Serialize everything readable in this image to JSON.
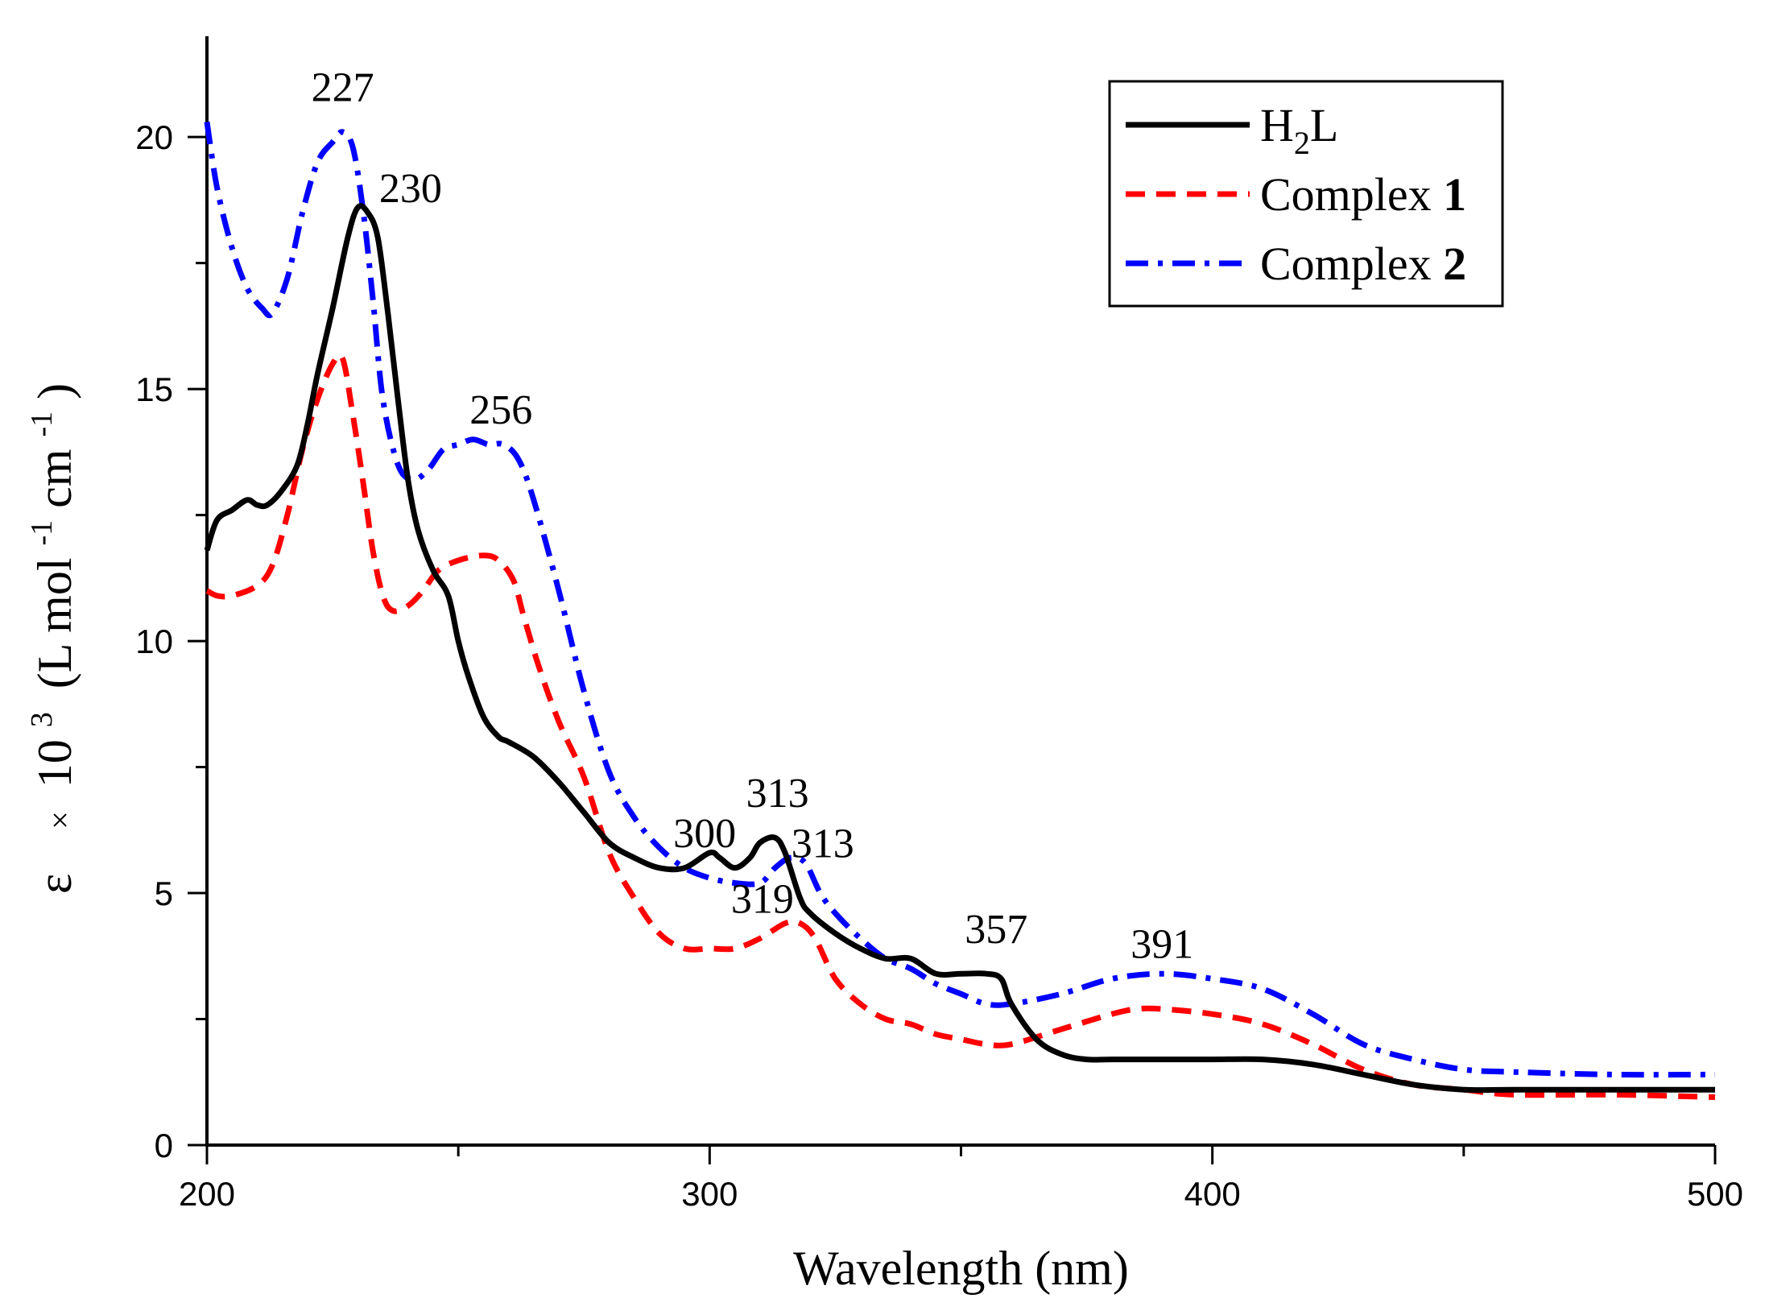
{
  "chart_data": {
    "type": "line",
    "title": "",
    "xlabel": "Wavelength (nm)",
    "ylabel": {
      "epsilon": "ε",
      "times": "×",
      "ten": "10",
      "ten_exp": "3",
      "paren_open": "(L mol",
      "mol_exp": "-1",
      "cm": " cm",
      "cm_exp": "-1",
      "paren_close": ")"
    },
    "xlim": [
      200,
      500
    ],
    "ylim": [
      0,
      22
    ],
    "x_ticks": [
      200,
      300,
      400,
      500
    ],
    "x_tick_labels": [
      "200",
      "300",
      "400",
      "500"
    ],
    "x_minor_ticks": [
      250,
      350,
      450
    ],
    "y_ticks": [
      0,
      5,
      10,
      15,
      20
    ],
    "y_tick_labels": [
      "0",
      "5",
      "10",
      "15",
      "20"
    ],
    "y_minor_ticks": [
      2.5,
      7.5,
      12.5,
      17.5
    ],
    "grid": false,
    "legend_position": "top-right",
    "series": [
      {
        "name": "H2L",
        "legend_main": "H",
        "legend_sub": "2",
        "legend_tail": "L",
        "legend_bold": "",
        "color": "#000000",
        "dash": "solid",
        "x": [
          200,
          202,
          205,
          208,
          210,
          212,
          215,
          218,
          220,
          222,
          225,
          228,
          230,
          232,
          234,
          236,
          238,
          240,
          242,
          245,
          248,
          250,
          252,
          255,
          258,
          260,
          265,
          270,
          275,
          280,
          285,
          290,
          295,
          300,
          302,
          305,
          308,
          310,
          313,
          315,
          318,
          320,
          325,
          330,
          335,
          340,
          345,
          350,
          355,
          358,
          360,
          365,
          370,
          375,
          380,
          390,
          400,
          410,
          420,
          430,
          440,
          450,
          460,
          480,
          500
        ],
        "y": [
          11.8,
          12.4,
          12.6,
          12.8,
          12.7,
          12.7,
          13.0,
          13.5,
          14.3,
          15.3,
          16.6,
          18.0,
          18.6,
          18.5,
          18.0,
          16.5,
          14.8,
          13.2,
          12.2,
          11.4,
          10.9,
          10.0,
          9.3,
          8.5,
          8.1,
          8.0,
          7.7,
          7.2,
          6.6,
          6.0,
          5.7,
          5.5,
          5.5,
          5.8,
          5.7,
          5.5,
          5.7,
          6.0,
          6.1,
          5.8,
          4.9,
          4.6,
          4.2,
          3.9,
          3.7,
          3.7,
          3.4,
          3.4,
          3.4,
          3.3,
          2.8,
          2.1,
          1.8,
          1.7,
          1.7,
          1.7,
          1.7,
          1.7,
          1.6,
          1.4,
          1.2,
          1.1,
          1.1,
          1.1,
          1.1
        ]
      },
      {
        "name": "Complex 1",
        "legend_main": "Complex ",
        "legend_sub": "",
        "legend_tail": "",
        "legend_bold": "1",
        "color": "#ff0000",
        "dash": "dashed",
        "x": [
          200,
          202,
          205,
          210,
          213,
          216,
          219,
          222,
          225,
          227,
          229,
          231,
          233,
          235,
          237,
          240,
          243,
          246,
          250,
          255,
          258,
          261,
          263,
          266,
          270,
          275,
          280,
          285,
          290,
          295,
          300,
          305,
          310,
          315,
          318,
          321,
          325,
          330,
          335,
          340,
          345,
          350,
          355,
          360,
          370,
          380,
          385,
          390,
          400,
          410,
          420,
          430,
          440,
          450,
          460,
          480,
          500
        ],
        "y": [
          11.0,
          10.9,
          10.9,
          11.1,
          11.5,
          12.5,
          13.8,
          14.8,
          15.5,
          15.6,
          14.5,
          13.2,
          11.8,
          10.9,
          10.6,
          10.7,
          11.0,
          11.4,
          11.6,
          11.7,
          11.6,
          11.2,
          10.5,
          9.5,
          8.4,
          7.3,
          5.8,
          4.9,
          4.2,
          3.9,
          3.9,
          3.9,
          4.1,
          4.4,
          4.4,
          4.1,
          3.3,
          2.8,
          2.5,
          2.4,
          2.2,
          2.1,
          2.0,
          2.0,
          2.3,
          2.6,
          2.7,
          2.7,
          2.6,
          2.4,
          2.0,
          1.5,
          1.2,
          1.1,
          1.0,
          1.0,
          0.95
        ]
      },
      {
        "name": "Complex 2",
        "legend_main": "Complex ",
        "legend_sub": "",
        "legend_tail": "",
        "legend_bold": "2",
        "color": "#0000ff",
        "dash": "dashdot",
        "x": [
          200,
          202,
          205,
          208,
          211,
          213,
          216,
          219,
          222,
          225,
          227,
          229,
          231,
          233,
          235,
          238,
          241,
          244,
          247,
          250,
          253,
          256,
          259,
          262,
          265,
          270,
          275,
          280,
          285,
          290,
          295,
          300,
          305,
          310,
          313,
          316,
          319,
          322,
          325,
          330,
          335,
          340,
          345,
          350,
          355,
          360,
          370,
          380,
          390,
          400,
          410,
          420,
          430,
          440,
          450,
          460,
          480,
          500
        ],
        "y": [
          20.3,
          19.0,
          17.8,
          17.0,
          16.6,
          16.5,
          17.2,
          18.5,
          19.5,
          19.9,
          20.1,
          19.8,
          18.6,
          16.8,
          14.8,
          13.5,
          13.2,
          13.4,
          13.8,
          13.9,
          14.0,
          13.9,
          13.9,
          13.6,
          12.8,
          11.0,
          9.0,
          7.4,
          6.5,
          5.9,
          5.5,
          5.3,
          5.2,
          5.2,
          5.5,
          5.7,
          5.6,
          5.0,
          4.6,
          4.1,
          3.7,
          3.5,
          3.2,
          3.0,
          2.8,
          2.8,
          3.0,
          3.3,
          3.4,
          3.3,
          3.1,
          2.6,
          2.0,
          1.7,
          1.5,
          1.45,
          1.4,
          1.4
        ]
      }
    ],
    "annotations": [
      {
        "text": "227",
        "x": 227,
        "y": 21.0
      },
      {
        "text": "230",
        "x": 240.5,
        "y": 19.0
      },
      {
        "text": "256",
        "x": 258.5,
        "y": 14.6
      },
      {
        "text": "313",
        "x": 313.5,
        "y": 7.0
      },
      {
        "text": "300",
        "x": 299,
        "y": 6.2
      },
      {
        "text": "313",
        "x": 322.5,
        "y": 6.0
      },
      {
        "text": "319",
        "x": 310.5,
        "y": 4.9
      },
      {
        "text": "357",
        "x": 357,
        "y": 4.3
      },
      {
        "text": "391",
        "x": 390,
        "y": 4.0
      }
    ]
  }
}
